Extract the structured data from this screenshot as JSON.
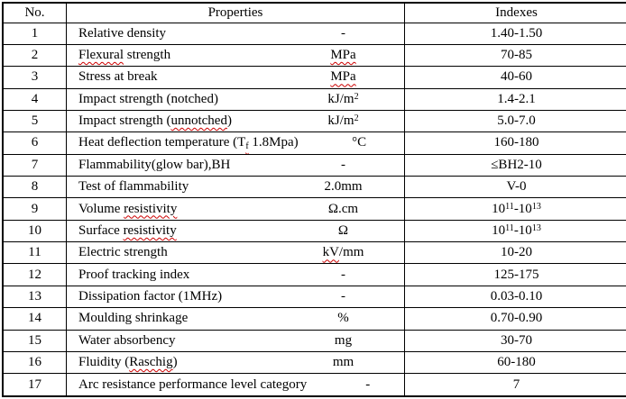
{
  "colors": {
    "background": "#ffffff",
    "text": "#000000",
    "border": "#000000",
    "squiggle": "#cc0000"
  },
  "table": {
    "headers": {
      "no": "No.",
      "properties": "Properties",
      "indexes": "Indexes"
    },
    "rows": [
      {
        "no": "1",
        "name": [
          {
            "t": "Relative density"
          }
        ],
        "unit": [
          {
            "t": "-"
          }
        ],
        "index": [
          {
            "t": "1.40-1.50"
          }
        ]
      },
      {
        "no": "2",
        "name": [
          {
            "t": "Flexural",
            "sq": true
          },
          {
            "t": " strength"
          }
        ],
        "unit": [
          {
            "t": "MPa",
            "sq": true
          }
        ],
        "index": [
          {
            "t": "70-85"
          }
        ]
      },
      {
        "no": "3",
        "name": [
          {
            "t": "Stress at break"
          }
        ],
        "unit": [
          {
            "t": "MPa",
            "sq": true
          }
        ],
        "index": [
          {
            "t": "40-60"
          }
        ]
      },
      {
        "no": "4",
        "name": [
          {
            "t": "Impact strength (notched)"
          }
        ],
        "unit": [
          {
            "t": "kJ/m"
          },
          {
            "t": "2",
            "sup": true
          }
        ],
        "index": [
          {
            "t": "1.4-2.1"
          }
        ]
      },
      {
        "no": "5",
        "name": [
          {
            "t": "Impact strength ("
          },
          {
            "t": "unnotched",
            "sq": true
          },
          {
            "t": ")"
          }
        ],
        "unit": [
          {
            "t": "kJ/m"
          },
          {
            "t": "2",
            "sup": true
          }
        ],
        "index": [
          {
            "t": "5.0-7.0"
          }
        ]
      },
      {
        "no": "6",
        "name": [
          {
            "t": "Heat deflection temperature (T"
          },
          {
            "t": "f",
            "sub": true,
            "sq": true
          },
          {
            "t": " 1.8Mpa)"
          }
        ],
        "unit": [
          {
            "t": "°C"
          }
        ],
        "index": [
          {
            "t": "160-180"
          }
        ]
      },
      {
        "no": "7",
        "name": [
          {
            "t": "Flammability(glow bar),BH"
          }
        ],
        "unit": [
          {
            "t": "-"
          }
        ],
        "index": [
          {
            "t": "≤BH2-10"
          }
        ]
      },
      {
        "no": "8",
        "name": [
          {
            "t": "Test of flammability"
          }
        ],
        "unit": [
          {
            "t": "2.0mm"
          }
        ],
        "index": [
          {
            "t": "V-0"
          }
        ]
      },
      {
        "no": "9",
        "name": [
          {
            "t": "Volume "
          },
          {
            "t": "resistivity",
            "sq": true
          }
        ],
        "unit": [
          {
            "t": "Ω.cm"
          }
        ],
        "index": [
          {
            "t": "10"
          },
          {
            "t": "11",
            "sup": true
          },
          {
            "t": "-10"
          },
          {
            "t": "13",
            "sup": true
          }
        ]
      },
      {
        "no": "10",
        "name": [
          {
            "t": "Surface "
          },
          {
            "t": "resistivity",
            "sq": true
          }
        ],
        "unit": [
          {
            "t": "Ω"
          }
        ],
        "index": [
          {
            "t": "10"
          },
          {
            "t": "11",
            "sup": true
          },
          {
            "t": "-10"
          },
          {
            "t": "13",
            "sup": true
          }
        ]
      },
      {
        "no": "11",
        "name": [
          {
            "t": "Electric strength"
          }
        ],
        "unit": [
          {
            "t": "kV",
            "sq": true
          },
          {
            "t": "/mm"
          }
        ],
        "index": [
          {
            "t": "10-20"
          }
        ]
      },
      {
        "no": "12",
        "name": [
          {
            "t": "Proof tracking index"
          }
        ],
        "unit": [
          {
            "t": "-"
          }
        ],
        "index": [
          {
            "t": "125-175"
          }
        ]
      },
      {
        "no": "13",
        "name": [
          {
            "t": "Dissipation factor (1MHz)"
          }
        ],
        "unit": [
          {
            "t": "-"
          }
        ],
        "index": [
          {
            "t": "0.03-0.10"
          }
        ]
      },
      {
        "no": "14",
        "name": [
          {
            "t": "Moulding shrinkage"
          }
        ],
        "unit": [
          {
            "t": "%"
          }
        ],
        "index": [
          {
            "t": "0.70-0.90"
          }
        ]
      },
      {
        "no": "15",
        "name": [
          {
            "t": "Water absorbency"
          }
        ],
        "unit": [
          {
            "t": "mg"
          }
        ],
        "index": [
          {
            "t": "30-70"
          }
        ]
      },
      {
        "no": "16",
        "name": [
          {
            "t": "Fluidity ("
          },
          {
            "t": "Raschig",
            "sq": true
          },
          {
            "t": ")"
          }
        ],
        "unit": [
          {
            "t": "mm"
          }
        ],
        "index": [
          {
            "t": "60-180"
          }
        ]
      },
      {
        "no": "17",
        "name": [
          {
            "t": "Arc resistance performance level category"
          }
        ],
        "unit": [
          {
            "t": "-"
          }
        ],
        "index": [
          {
            "t": "7"
          }
        ],
        "raised": true
      }
    ]
  }
}
